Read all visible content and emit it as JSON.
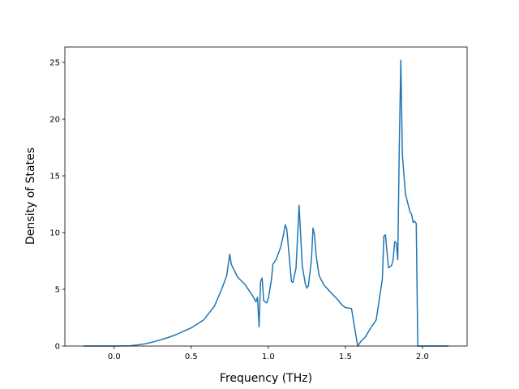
{
  "chart_data": {
    "type": "line",
    "xlabel": "Frequency (THz)",
    "ylabel": "Density of States",
    "color": "#1f77b4",
    "x": [
      -0.2,
      0.0,
      0.1,
      0.15,
      0.2,
      0.25,
      0.3,
      0.35,
      0.4,
      0.45,
      0.5,
      0.58,
      0.65,
      0.7,
      0.73,
      0.75,
      0.76,
      0.8,
      0.85,
      0.9,
      0.92,
      0.93,
      0.94,
      0.95,
      0.96,
      0.97,
      0.99,
      1.0,
      1.02,
      1.03,
      1.05,
      1.08,
      1.1,
      1.11,
      1.12,
      1.15,
      1.16,
      1.18,
      1.2,
      1.22,
      1.24,
      1.25,
      1.26,
      1.28,
      1.29,
      1.3,
      1.31,
      1.33,
      1.36,
      1.4,
      1.45,
      1.48,
      1.5,
      1.54,
      1.58,
      1.6,
      1.63,
      1.66,
      1.7,
      1.72,
      1.74,
      1.75,
      1.76,
      1.78,
      1.8,
      1.81,
      1.82,
      1.83,
      1.84,
      1.85,
      1.86,
      1.87,
      1.88,
      1.89,
      1.92,
      1.93,
      1.94,
      1.95,
      1.96,
      1.97,
      2.0,
      2.17
    ],
    "values": [
      0,
      0,
      0.02,
      0.1,
      0.2,
      0.35,
      0.55,
      0.75,
      1.0,
      1.3,
      1.6,
      2.3,
      3.5,
      5.1,
      6.2,
      8.1,
      7.2,
      6.1,
      5.4,
      4.4,
      3.9,
      4.3,
      1.7,
      5.7,
      6.0,
      4.0,
      3.8,
      4.2,
      5.8,
      7.2,
      7.6,
      8.7,
      9.9,
      10.7,
      10.3,
      5.7,
      5.6,
      6.9,
      12.4,
      7.1,
      5.5,
      5.1,
      5.3,
      7.6,
      10.4,
      9.8,
      8.0,
      6.2,
      5.4,
      4.8,
      4.1,
      3.6,
      3.4,
      3.3,
      0,
      0.4,
      0.8,
      1.5,
      2.3,
      4.1,
      5.9,
      9.7,
      9.8,
      6.9,
      7.1,
      7.6,
      9.2,
      9.1,
      7.6,
      17.6,
      25.2,
      16.9,
      15.1,
      13.4,
      11.8,
      11.6,
      10.9,
      11.0,
      10.8,
      0,
      0,
      0
    ],
    "xlim": [
      -0.32,
      2.29
    ],
    "ylim": [
      0,
      26.36
    ],
    "xticks": [
      {
        "value": 0,
        "label": "0.0"
      },
      {
        "value": 0.5,
        "label": "0.5"
      },
      {
        "value": 1,
        "label": "1.0"
      },
      {
        "value": 1.5,
        "label": "1.5"
      },
      {
        "value": 2,
        "label": "2.0"
      }
    ],
    "yticks": [
      0,
      5,
      10,
      15,
      20,
      25
    ]
  }
}
